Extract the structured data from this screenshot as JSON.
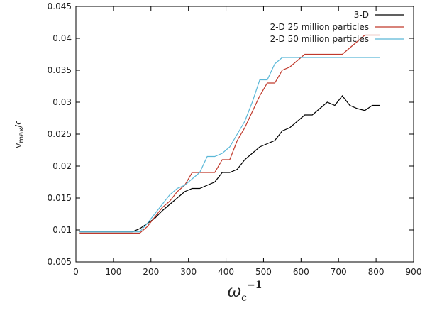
{
  "chart_data": {
    "type": "line",
    "xlabel": {
      "main": "ω",
      "sub": "c",
      "sup": "−1"
    },
    "ylabel": {
      "main": "v",
      "sub": "max",
      "rest": "/c"
    },
    "x": [
      10,
      30,
      50,
      70,
      90,
      110,
      130,
      150,
      170,
      190,
      210,
      230,
      250,
      270,
      290,
      310,
      330,
      350,
      370,
      390,
      410,
      430,
      450,
      470,
      490,
      510,
      530,
      550,
      570,
      590,
      610,
      630,
      650,
      670,
      690,
      710,
      730,
      750,
      770,
      790,
      810
    ],
    "series": [
      {
        "name": "3-D",
        "color": "#000000",
        "values": [
          0.0097,
          0.0097,
          0.0097,
          0.0097,
          0.0097,
          0.0097,
          0.0097,
          0.0097,
          0.0102,
          0.011,
          0.0118,
          0.013,
          0.014,
          0.015,
          0.016,
          0.0165,
          0.0165,
          0.017,
          0.0175,
          0.019,
          0.019,
          0.0195,
          0.021,
          0.022,
          0.023,
          0.0235,
          0.024,
          0.0255,
          0.026,
          0.027,
          0.028,
          0.028,
          0.029,
          0.03,
          0.0295,
          0.031,
          0.0295,
          0.029,
          0.0287,
          0.0295,
          0.0295
        ]
      },
      {
        "name": "2-D 25 million particles",
        "color": "#c0392b",
        "values": [
          0.0095,
          0.0095,
          0.0095,
          0.0095,
          0.0095,
          0.0095,
          0.0095,
          0.0095,
          0.0095,
          0.0105,
          0.012,
          0.0135,
          0.0145,
          0.016,
          0.017,
          0.019,
          0.019,
          0.019,
          0.019,
          0.021,
          0.021,
          0.024,
          0.026,
          0.0285,
          0.031,
          0.033,
          0.033,
          0.035,
          0.0355,
          0.0365,
          0.0375,
          0.0375,
          0.0375,
          0.0375,
          0.0375,
          0.0375,
          0.0385,
          0.0395,
          0.0405,
          0.0405,
          0.0405
        ]
      },
      {
        "name": "2-D 50 million particles",
        "color": "#5bb8d8",
        "values": [
          0.0097,
          0.0097,
          0.0097,
          0.0097,
          0.0097,
          0.0097,
          0.0097,
          0.0097,
          0.0097,
          0.011,
          0.0125,
          0.014,
          0.0155,
          0.0165,
          0.017,
          0.018,
          0.019,
          0.0215,
          0.0215,
          0.022,
          0.023,
          0.025,
          0.027,
          0.03,
          0.0335,
          0.0335,
          0.036,
          0.037,
          0.037,
          0.037,
          0.037,
          0.037,
          0.037,
          0.037,
          0.037,
          0.037,
          0.037,
          0.037,
          0.037,
          0.037,
          0.037
        ]
      }
    ],
    "xlim": [
      0,
      900
    ],
    "xticks": [
      0,
      100,
      200,
      300,
      400,
      500,
      600,
      700,
      800,
      900
    ],
    "ylim": [
      0.005,
      0.045
    ],
    "yticks": [
      0.005,
      0.01,
      0.015,
      0.02,
      0.025,
      0.03,
      0.035,
      0.04,
      0.045
    ],
    "grid": false,
    "legend": "top-right"
  }
}
